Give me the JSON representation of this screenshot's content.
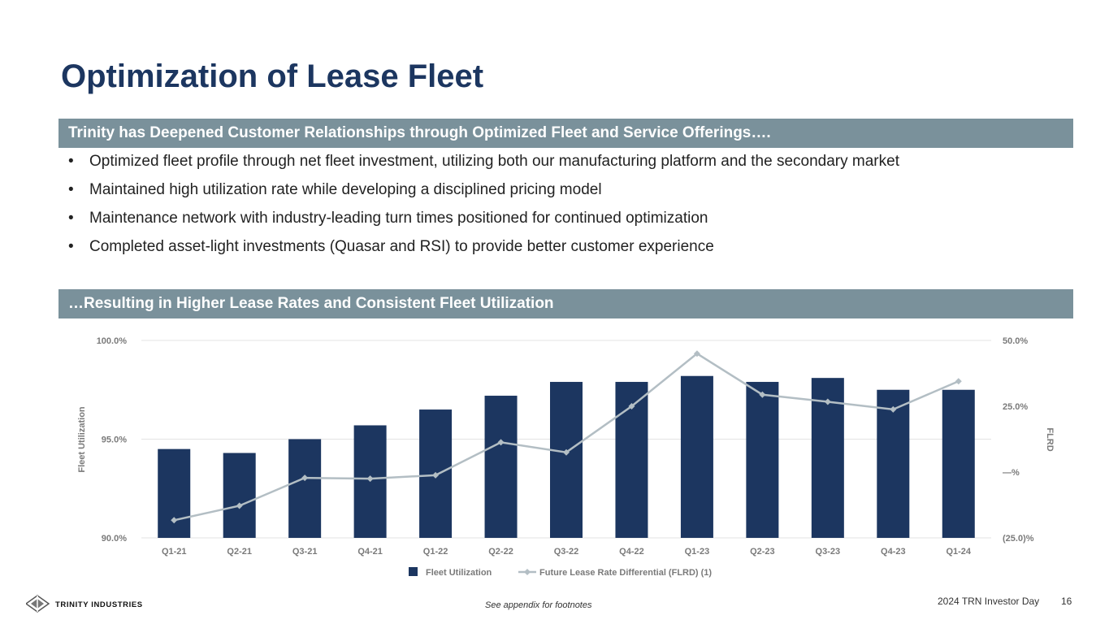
{
  "title": "Optimization of Lease Fleet",
  "banner_top": "Trinity has Deepened Customer Relationships through Optimized Fleet and Service Offerings….",
  "bullets": [
    "Optimized fleet profile through net fleet investment, utilizing both our manufacturing platform and the secondary market",
    "Maintained high utilization rate while developing a disciplined pricing model",
    "Maintenance network with industry-leading turn times positioned for continued optimization",
    "Completed asset-light investments (Quasar and RSI) to provide better customer experience"
  ],
  "bullet_symbol": "•",
  "banner_bottom": "…Resulting in Higher Lease Rates and Consistent Fleet Utilization",
  "chart_data": {
    "type": "bar+line",
    "categories": [
      "Q1-21",
      "Q2-21",
      "Q3-21",
      "Q4-21",
      "Q1-22",
      "Q2-22",
      "Q3-22",
      "Q4-22",
      "Q1-23",
      "Q2-23",
      "Q3-23",
      "Q4-23",
      "Q1-24"
    ],
    "series": [
      {
        "name": "Fleet Utilization",
        "type": "bar",
        "axis": "left",
        "values": [
          94.5,
          94.3,
          95.0,
          95.7,
          96.5,
          97.2,
          97.9,
          97.9,
          98.2,
          97.9,
          98.1,
          97.5,
          97.5
        ],
        "color": "#1c3660"
      },
      {
        "name": "Future Lease Rate Differential (FLRD) (1)",
        "type": "line",
        "axis": "right",
        "values": [
          -18.3,
          -12.8,
          -2.2,
          -2.5,
          -1.2,
          11.3,
          7.5,
          25.0,
          45.0,
          29.4,
          26.7,
          23.8,
          34.5
        ],
        "color": "#b3bec4"
      }
    ],
    "left_axis": {
      "label": "Fleet Utilization",
      "min": 90,
      "max": 100,
      "ticks": [
        {
          "value": 90,
          "label": "90.0%"
        },
        {
          "value": 95,
          "label": "95.0%"
        },
        {
          "value": 100,
          "label": "100.0%"
        }
      ]
    },
    "right_axis": {
      "label": "FLRD",
      "min": -25,
      "max": 50,
      "ticks": [
        {
          "value": -25,
          "label": "(25.0)%"
        },
        {
          "value": 0,
          "label": "—%"
        },
        {
          "value": 25,
          "label": "25.0%"
        },
        {
          "value": 50,
          "label": "50.0%"
        }
      ]
    },
    "legend": [
      "Fleet Utilization",
      "Future Lease Rate Differential (FLRD) (1)"
    ],
    "legend_position": "bottom-center",
    "gridlines": true
  },
  "footer": {
    "logo_text": "TRINITY INDUSTRIES",
    "note": "See appendix for footnotes",
    "event": "2024 TRN Investor Day",
    "page": "16"
  }
}
